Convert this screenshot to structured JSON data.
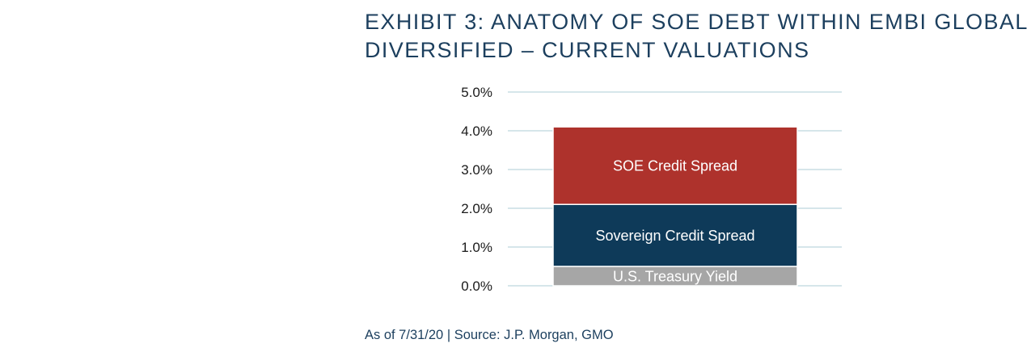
{
  "title_lines": [
    "EXHIBIT 3: ANATOMY OF SOE DEBT WITHIN EMBI GLOBAL",
    "DIVERSIFIED – CURRENT VALUATIONS"
  ],
  "footnote": "As of 7/31/20 | Source: J.P. Morgan, GMO",
  "chart_data": {
    "type": "bar",
    "stacked": true,
    "categories": [
      ""
    ],
    "series": [
      {
        "name": "U.S. Treasury Yield",
        "values": [
          0.5
        ],
        "color": "#a6a6a6"
      },
      {
        "name": "Sovereign Credit Spread",
        "values": [
          1.6
        ],
        "color": "#0e3a59"
      },
      {
        "name": "SOE Credit Spread",
        "values": [
          2.0
        ],
        "color": "#ae322c"
      }
    ],
    "y_ticks": [
      "0.0%",
      "1.0%",
      "2.0%",
      "3.0%",
      "4.0%",
      "5.0%"
    ],
    "ylim": [
      0,
      5
    ],
    "y_unit": "%",
    "grid": true,
    "grid_color": "#c9dde4",
    "legend": "labels on segments"
  }
}
